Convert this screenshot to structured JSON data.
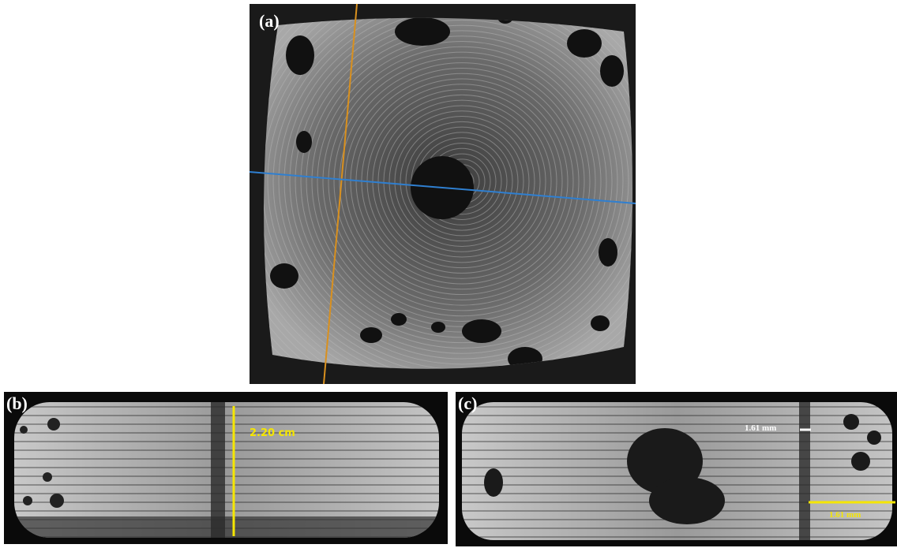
{
  "panels": [
    {
      "label": "(a)"
    },
    {
      "label": "(b)",
      "annotations": [
        "2.20 cm"
      ]
    },
    {
      "label": "(c)",
      "annotations": [
        "1.61 mm",
        "1.61 mm"
      ]
    }
  ]
}
